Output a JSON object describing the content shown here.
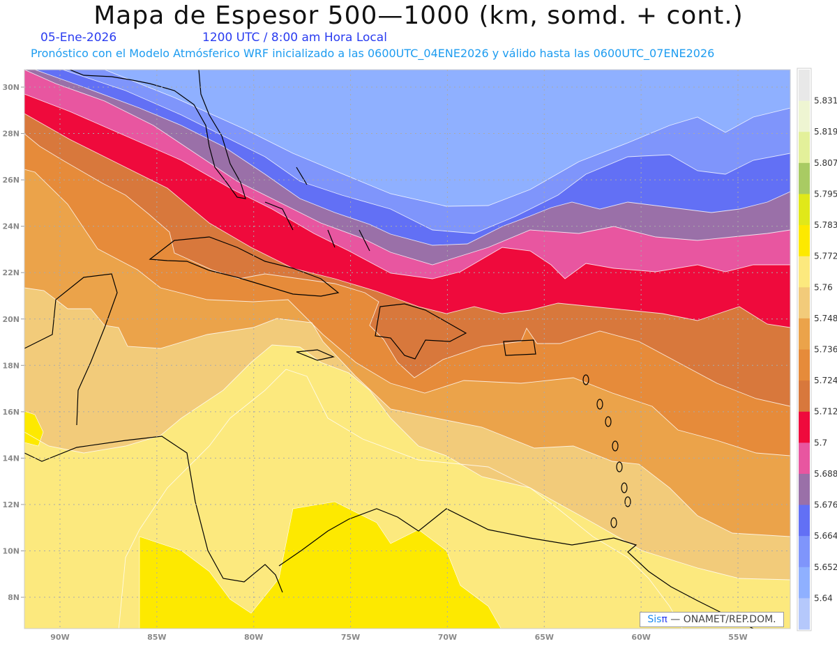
{
  "header": {
    "title": "Mapa de Espesor 500—1000 (km, somd. + cont.)",
    "date": "05-Ene-2026",
    "time": "1200 UTC / 8:00 am Hora Local",
    "forecast_note": "Pronóstico con el Modelo Atmósferico WRF inicializado a las 0600UTC_04ENE2026 y válido hasta las  0600UTC_07ENE2026"
  },
  "map": {
    "lat_labels": [
      "30N",
      "28N",
      "26N",
      "24N",
      "22N",
      "20N",
      "18N",
      "16N",
      "14N",
      "12N",
      "10N",
      "8N"
    ],
    "lon_labels": [
      "90W",
      "85W",
      "80W",
      "75W",
      "70W",
      "65W",
      "60W",
      "55W"
    ],
    "credit": {
      "brand": "Sis",
      "brand_symbol": "π",
      "text": " —  ONAMET/REP.DOM."
    }
  },
  "legend": {
    "levels": [
      "5.831",
      "5.819",
      "5.807",
      "5.795",
      "5.783",
      "5.772",
      "5.76",
      "5.748",
      "5.736",
      "5.724",
      "5.712",
      "5.7",
      "5.688",
      "5.676",
      "5.664",
      "5.652",
      "5.64"
    ],
    "colors_top_to_bottom": [
      "#e8e8e8",
      "#eef5d2",
      "#e3f09a",
      "#a9cb63",
      "#e0e81a",
      "#fde900",
      "#fce97e",
      "#f2cb7a",
      "#eba34a",
      "#e68b3a",
      "#d8783c",
      "#ef0a3c",
      "#e856a0",
      "#9a70a8",
      "#6270f5",
      "#7f95fb",
      "#8fb0ff",
      "#b5c8fb"
    ]
  }
}
